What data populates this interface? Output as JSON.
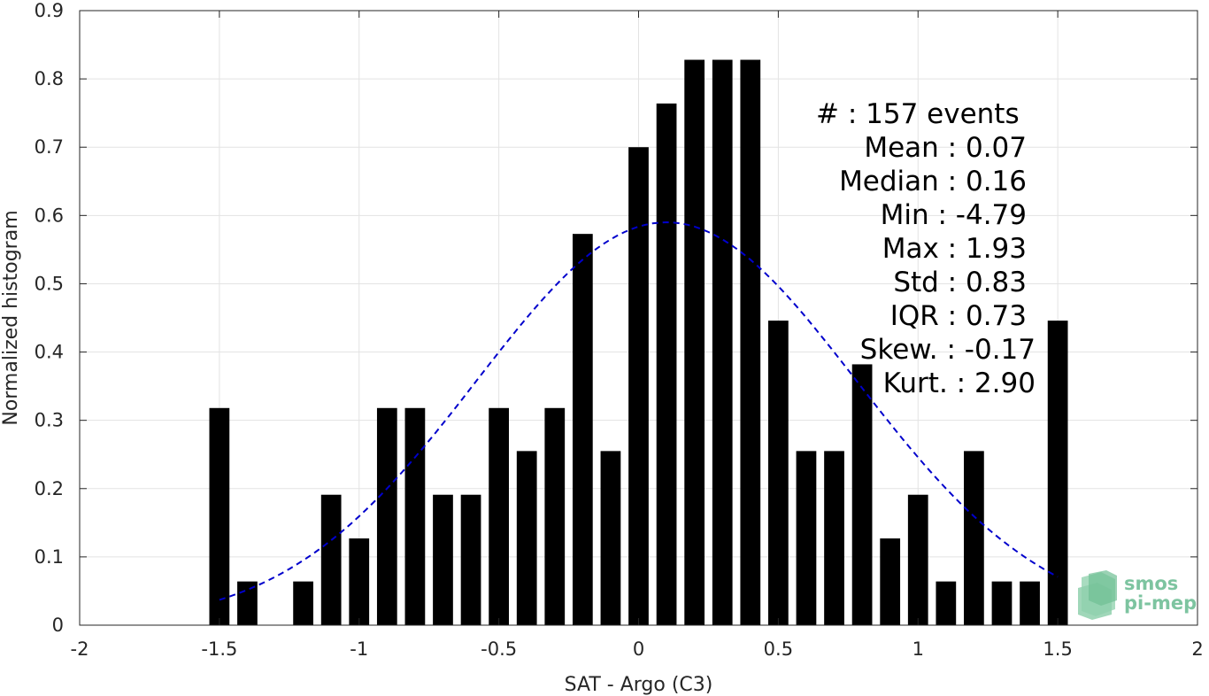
{
  "chart_data": {
    "type": "bar",
    "xlabel": "SAT - Argo (C3)",
    "ylabel": "Normalized histogram",
    "xlim": [
      -2,
      2
    ],
    "ylim": [
      0,
      0.9
    ],
    "xticks": [
      "-2",
      "-1.5",
      "-1",
      "-0.5",
      "0",
      "0.5",
      "1",
      "1.5",
      "2"
    ],
    "xtick_values": [
      -2,
      -1.5,
      -1,
      -0.5,
      0,
      0.5,
      1,
      1.5,
      2
    ],
    "yticks": [
      "0",
      "0.1",
      "0.2",
      "0.3",
      "0.4",
      "0.5",
      "0.6",
      "0.7",
      "0.8",
      "0.9"
    ],
    "ytick_values": [
      0,
      0.1,
      0.2,
      0.3,
      0.4,
      0.5,
      0.6,
      0.7,
      0.8,
      0.9
    ],
    "grid": true,
    "bar_color": "#000000",
    "bin_centers": [
      -1.5,
      -1.4,
      -1.3,
      -1.2,
      -1.1,
      -1.0,
      -0.9,
      -0.8,
      -0.7,
      -0.6,
      -0.5,
      -0.4,
      -0.3,
      -0.2,
      -0.1,
      0.0,
      0.1,
      0.2,
      0.3,
      0.4,
      0.5,
      0.6,
      0.7,
      0.8,
      0.9,
      1.0,
      1.1,
      1.2,
      1.3,
      1.4,
      1.5
    ],
    "values": [
      0.318,
      0.064,
      0.0,
      0.064,
      0.191,
      0.127,
      0.318,
      0.318,
      0.191,
      0.191,
      0.318,
      0.255,
      0.318,
      0.573,
      0.255,
      0.7,
      0.764,
      0.828,
      0.828,
      0.828,
      0.446,
      0.255,
      0.255,
      0.382,
      0.127,
      0.191,
      0.064,
      0.255,
      0.064,
      0.064,
      0.446
    ],
    "fit_curve": {
      "type": "gaussian",
      "color": "#0000cc",
      "style": "dashed",
      "mean": 0.1,
      "std": 0.68,
      "peak": 0.59,
      "x_range": [
        -1.5,
        1.5
      ]
    }
  },
  "stats": {
    "events": "#  : 157 events",
    "mean": "Mean : 0.07",
    "median": "Median : 0.16",
    "min": "Min : -4.79",
    "max": "Max : 1.93",
    "std": "Std : 0.83",
    "iqr": "IQR : 0.73",
    "skew": "Skew. : -0.17",
    "kurt": "Kurt. : 2.90"
  },
  "logo": {
    "line1": "smos",
    "line2": "pi-mep",
    "color": "#7dc4a0"
  }
}
